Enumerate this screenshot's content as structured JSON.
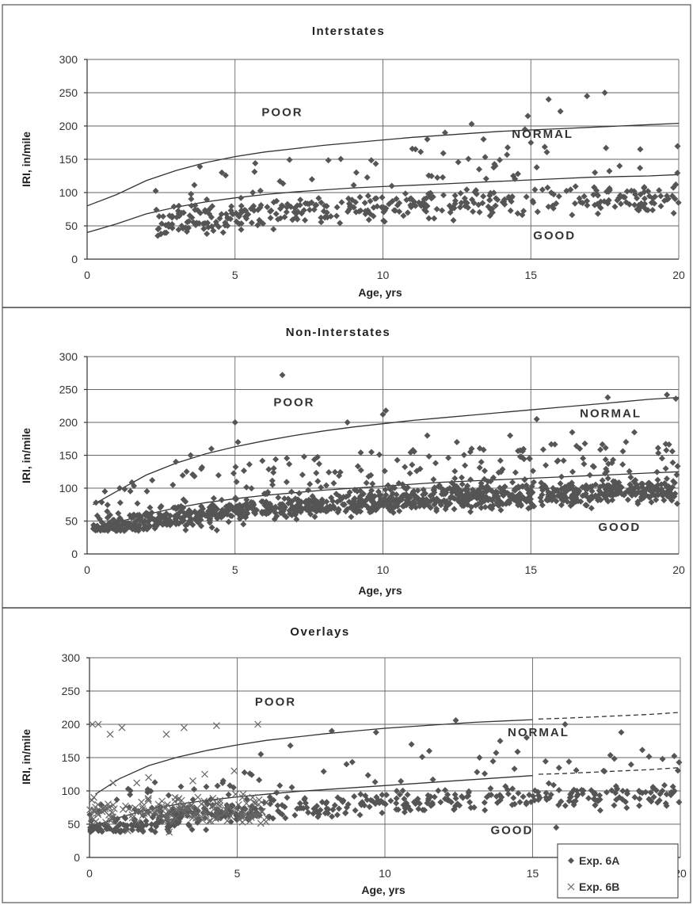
{
  "chart_data": [
    {
      "type": "scatter",
      "title": "Interstates",
      "xlabel": "Age, yrs",
      "ylabel": "IRI, in/mile",
      "xlim": [
        0,
        20
      ],
      "ylim": [
        0,
        300
      ],
      "x_ticks": [
        "0",
        "5",
        "10",
        "15",
        "20"
      ],
      "y_ticks": [
        "0",
        "50",
        "100",
        "150",
        "200",
        "250",
        "300"
      ],
      "grid": true,
      "zone_labels": [
        {
          "text": "POOR",
          "x": 6.6,
          "y": 215
        },
        {
          "text": "NORMAL",
          "x": 15.4,
          "y": 182
        },
        {
          "text": "GOOD",
          "x": 15.8,
          "y": 30
        }
      ],
      "thresholds": {
        "upper": {
          "x": [
            0,
            1,
            2,
            3,
            4,
            5,
            6,
            7,
            8,
            9,
            10,
            11,
            12,
            13,
            14,
            15,
            16,
            17,
            18,
            19,
            20
          ],
          "y": [
            80,
            97,
            118,
            133,
            145,
            154,
            161,
            166,
            171,
            175,
            179,
            183,
            186,
            189,
            192,
            194,
            196,
            198,
            200,
            202,
            204
          ]
        },
        "lower": {
          "x": [
            0,
            1,
            2,
            3,
            4,
            5,
            6,
            7,
            8,
            9,
            10,
            11,
            12,
            13,
            14,
            15,
            16,
            17,
            18,
            19,
            20
          ],
          "y": [
            40,
            53,
            68,
            78,
            86,
            92,
            97,
            101,
            104,
            107,
            109,
            111,
            113,
            115,
            117,
            119,
            121,
            123,
            124,
            125,
            127
          ]
        }
      },
      "point_generator": {
        "count": 420,
        "x_range": [
          2.3,
          20
        ],
        "seed": 11
      },
      "series": [
        {
          "name": "",
          "marker": "diamond",
          "points": [
            [
              2.4,
              45
            ],
            [
              2.5,
              38
            ],
            [
              3.1,
              80
            ],
            [
              3.6,
              55
            ],
            [
              4.1,
              48
            ],
            [
              4.6,
              40
            ],
            [
              5.2,
              92
            ],
            [
              5.6,
              100
            ],
            [
              6.3,
              45
            ],
            [
              7.6,
              120
            ],
            [
              8.0,
              72
            ],
            [
              9.1,
              130
            ],
            [
              10.3,
              110
            ],
            [
              11.1,
              165
            ],
            [
              11.5,
              180
            ],
            [
              12.1,
              190
            ],
            [
              13.0,
              203
            ],
            [
              13.4,
              180
            ],
            [
              14.8,
              195
            ],
            [
              14.9,
              215
            ],
            [
              15.0,
              175
            ],
            [
              15.6,
              240
            ],
            [
              16.0,
              222
            ],
            [
              16.9,
              245
            ],
            [
              17.5,
              250
            ],
            [
              18.7,
              165
            ],
            [
              19.6,
              95
            ],
            [
              19.9,
              112
            ],
            [
              15.2,
              138
            ],
            [
              13.8,
              140
            ],
            [
              18.0,
              140
            ]
          ]
        }
      ]
    },
    {
      "type": "scatter",
      "title": "Non-Interstates",
      "xlabel": "Age, yrs",
      "ylabel": "IRI, in/mile",
      "xlim": [
        0,
        20
      ],
      "ylim": [
        0,
        300
      ],
      "x_ticks": [
        "0",
        "5",
        "10",
        "15",
        "20"
      ],
      "y_ticks": [
        "0",
        "50",
        "100",
        "150",
        "200",
        "250",
        "300"
      ],
      "grid": true,
      "zone_labels": [
        {
          "text": "POOR",
          "x": 7.0,
          "y": 225
        },
        {
          "text": "NORMAL",
          "x": 17.7,
          "y": 208
        },
        {
          "text": "GOOD",
          "x": 18.0,
          "y": 35
        }
      ],
      "thresholds": {
        "upper": {
          "x": [
            0.2,
            1,
            2,
            3,
            4,
            5,
            6,
            7,
            8,
            9,
            10,
            11,
            12,
            13,
            14,
            15,
            16,
            17,
            18,
            19,
            20
          ],
          "y": [
            75,
            95,
            120,
            138,
            152,
            163,
            172,
            180,
            187,
            193,
            198,
            203,
            207,
            211,
            215,
            219,
            223,
            227,
            231,
            235,
            238
          ]
        },
        "lower": {
          "x": [
            0.2,
            1,
            2,
            3,
            4,
            5,
            6,
            7,
            8,
            9,
            10,
            11,
            12,
            13,
            14,
            15,
            16,
            17,
            18,
            19,
            20
          ],
          "y": [
            40,
            48,
            60,
            70,
            78,
            84,
            89,
            93,
            97,
            100,
            103,
            106,
            109,
            111,
            113,
            115,
            117,
            119,
            121,
            123,
            125
          ]
        }
      },
      "point_generator": {
        "count": 1300,
        "x_range": [
          0.2,
          20
        ],
        "seed": 23
      },
      "series": [
        {
          "name": "",
          "marker": "diamond",
          "points": [
            [
              0.3,
              78
            ],
            [
              0.6,
              95
            ],
            [
              0.5,
              48
            ],
            [
              1.1,
              100
            ],
            [
              1.5,
              55
            ],
            [
              2.2,
              112
            ],
            [
              3.0,
              140
            ],
            [
              3.5,
              150
            ],
            [
              4.2,
              160
            ],
            [
              5.0,
              200
            ],
            [
              5.1,
              170
            ],
            [
              6.6,
              272
            ],
            [
              8.8,
              200
            ],
            [
              10.0,
              212
            ],
            [
              10.1,
              218
            ],
            [
              15.2,
              205
            ],
            [
              17.6,
              238
            ],
            [
              19.6,
              242
            ],
            [
              19.9,
              236
            ],
            [
              12.5,
              170
            ],
            [
              14.3,
              180
            ],
            [
              16.4,
              185
            ],
            [
              18.5,
              185
            ],
            [
              13.0,
              160
            ],
            [
              11.5,
              180
            ]
          ]
        }
      ]
    },
    {
      "type": "scatter",
      "title": "Overlays",
      "xlabel": "Age, yrs",
      "ylabel": "IRI, in/mile",
      "xlim": [
        0,
        20
      ],
      "ylim": [
        0,
        300
      ],
      "x_ticks": [
        "0",
        "5",
        "10",
        "15",
        "20"
      ],
      "y_ticks": [
        "0",
        "50",
        "100",
        "150",
        "200",
        "250",
        "300"
      ],
      "grid": true,
      "legend": {
        "position": "bottom-right",
        "entries": [
          "Exp. 6A",
          "Exp. 6B"
        ]
      },
      "zone_labels": [
        {
          "text": "POOR",
          "x": 6.3,
          "y": 228
        },
        {
          "text": "NORMAL",
          "x": 15.2,
          "y": 182
        },
        {
          "text": "GOOD",
          "x": 14.3,
          "y": 35
        }
      ],
      "thresholds": {
        "upper": {
          "x": [
            0.2,
            1,
            2,
            3,
            4,
            5,
            6,
            7,
            8,
            9,
            10,
            11,
            12,
            13,
            14,
            15
          ],
          "y": [
            95,
            118,
            138,
            151,
            161,
            169,
            176,
            181,
            186,
            190,
            194,
            197,
            200,
            203,
            205,
            207
          ]
        },
        "lower": {
          "x": [
            0.2,
            1,
            2,
            3,
            4,
            5,
            6,
            7,
            8,
            9,
            10,
            11,
            12,
            13,
            14,
            15
          ],
          "y": [
            48,
            60,
            72,
            80,
            86,
            91,
            95,
            99,
            102,
            105,
            108,
            111,
            114,
            117,
            120,
            123
          ]
        },
        "upper_extension": {
          "x": [
            15.2,
            16,
            17,
            18,
            19,
            20
          ],
          "y": [
            208,
            209,
            211,
            213,
            215,
            218
          ]
        },
        "lower_extension": {
          "x": [
            15.2,
            16,
            17,
            18,
            19,
            20
          ],
          "y": [
            125,
            126,
            128,
            130,
            132,
            135
          ]
        }
      },
      "point_generator": {
        "count_6a": 520,
        "count_6b": 160,
        "seed": 37
      },
      "series": [
        {
          "name": "Exp. 6A",
          "marker": "diamond",
          "points": [
            [
              5.8,
              155
            ],
            [
              6.8,
              168
            ],
            [
              8.2,
              190
            ],
            [
              9.7,
              188
            ],
            [
              10.9,
              170
            ],
            [
              12.4,
              206
            ],
            [
              13.9,
              175
            ],
            [
              14.8,
              180
            ],
            [
              16.1,
              200
            ],
            [
              18.0,
              188
            ],
            [
              19.4,
              148
            ],
            [
              19.8,
              100
            ],
            [
              15.8,
              45
            ],
            [
              16.5,
              100
            ],
            [
              17.2,
              85
            ],
            [
              18.6,
              100
            ],
            [
              17.4,
              130
            ],
            [
              8.7,
              140
            ],
            [
              11.5,
              160
            ],
            [
              13.2,
              150
            ]
          ]
        },
        {
          "name": "Exp. 6B",
          "marker": "x",
          "points": [
            [
              0.1,
              200
            ],
            [
              0.3,
              200
            ],
            [
              1.1,
              195
            ],
            [
              0.7,
              185
            ],
            [
              2.6,
              185
            ],
            [
              3.2,
              195
            ],
            [
              4.3,
              198
            ],
            [
              5.7,
              200
            ],
            [
              0.8,
              112
            ],
            [
              1.6,
              112
            ],
            [
              2.0,
              120
            ],
            [
              3.9,
              125
            ],
            [
              4.9,
              130
            ],
            [
              2.9,
              90
            ],
            [
              3.5,
              115
            ],
            [
              0.5,
              70
            ],
            [
              1.3,
              40
            ],
            [
              2.7,
              38
            ],
            [
              4.1,
              55
            ],
            [
              5.2,
              95
            ]
          ]
        }
      ]
    }
  ]
}
